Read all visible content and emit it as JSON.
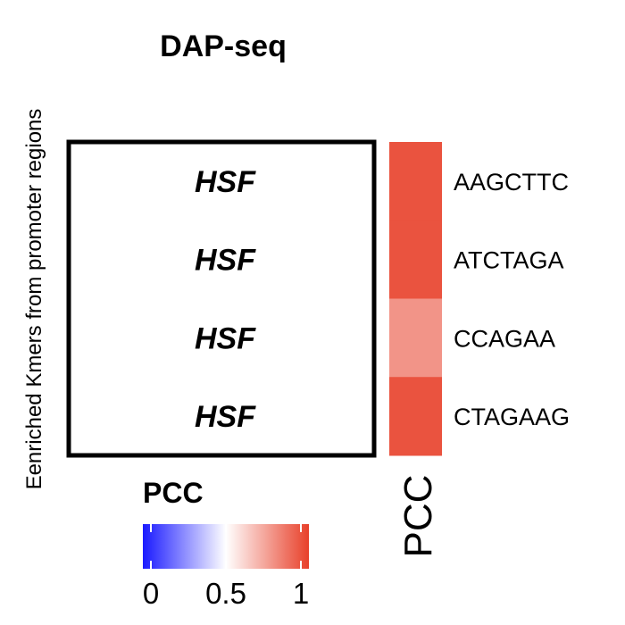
{
  "chart_data": {
    "type": "heatmap",
    "title": "DAP-seq",
    "ylabel": "Eenriched Kmers from promoter regions",
    "rows": [
      {
        "label": "HSF",
        "kmer": "AAGCTTC",
        "pcc": 0.95
      },
      {
        "label": "HSF",
        "kmer": "ATCTAGA",
        "pcc": 0.95
      },
      {
        "label": "HSF",
        "kmer": "CCAGAA",
        "pcc": 0.78
      },
      {
        "label": "HSF",
        "kmer": "CTAGAAG",
        "pcc": 0.95
      }
    ],
    "strip_label": "PCC",
    "legend": {
      "title": "PCC",
      "range": [
        0,
        1
      ],
      "ticks": [
        "0",
        "0.5",
        "1"
      ],
      "colors": {
        "low": "#1a1aff",
        "mid": "#ffffff",
        "high": "#e8402a"
      }
    }
  }
}
